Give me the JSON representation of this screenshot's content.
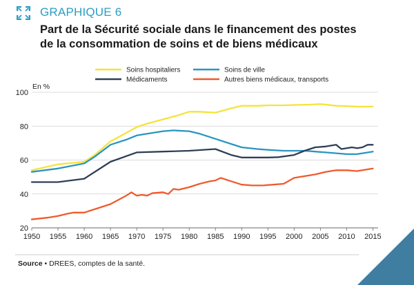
{
  "header": {
    "label": "GRAPHIQUE 6",
    "icon": "expand-icon",
    "title_line1": "Part de la Sécurité sociale dans le financement des postes",
    "title_line2": "de la consommation de soins et de biens médicaux"
  },
  "source": {
    "label": "Source",
    "bullet": "•",
    "text": "DREES, comptes de la santé."
  },
  "colors": {
    "accent": "#2b9ec0",
    "soins_hospitaliers": "#f5e33a",
    "soins_de_ville": "#2a95bf",
    "medicaments": "#2e3e55",
    "autres": "#ef5a2b",
    "grid": "#cfcfcf",
    "corner": "#3f7ea0"
  },
  "chart_data": {
    "type": "line",
    "title": "",
    "xlabel": "",
    "ylabel": "En %",
    "xlim": [
      1950,
      2016
    ],
    "ylim": [
      20,
      100
    ],
    "xticks": [
      1950,
      1955,
      1960,
      1965,
      1970,
      1975,
      1980,
      1985,
      1990,
      1995,
      2000,
      2005,
      2010,
      2015
    ],
    "yticks": [
      20,
      40,
      60,
      80,
      100
    ],
    "grid": true,
    "legend_position": "top",
    "series": [
      {
        "name": "Soins hospitaliers",
        "color": "#f5e33a",
        "x": [
          1950,
          1955,
          1960,
          1962,
          1965,
          1968,
          1970,
          1972,
          1975,
          1978,
          1980,
          1982,
          1985,
          1988,
          1990,
          1993,
          1995,
          1998,
          2000,
          2003,
          2005,
          2008,
          2010,
          2012,
          2015
        ],
        "y": [
          54,
          57.5,
          59,
          63,
          71,
          76,
          79.5,
          81.5,
          84,
          86.5,
          88.5,
          88.5,
          88,
          90.5,
          92,
          92,
          92.3,
          92.3,
          92.5,
          92.7,
          93,
          92,
          91.8,
          91.5,
          91.5
        ]
      },
      {
        "name": "Soins de ville",
        "color": "#2a95bf",
        "x": [
          1950,
          1955,
          1960,
          1962,
          1965,
          1968,
          1970,
          1972,
          1975,
          1977,
          1980,
          1982,
          1985,
          1988,
          1990,
          1993,
          1995,
          1998,
          2000,
          2002,
          2004,
          2006,
          2008,
          2010,
          2012,
          2015
        ],
        "y": [
          53,
          55,
          58,
          62,
          69,
          72,
          74.5,
          75.5,
          77,
          77.5,
          77,
          75.5,
          72.5,
          69.5,
          67.5,
          66.5,
          66,
          65.5,
          65.5,
          65.5,
          65,
          64.5,
          64,
          63.5,
          63.5,
          65
        ]
      },
      {
        "name": "Médicaments",
        "color": "#2e3e55",
        "x": [
          1950,
          1955,
          1960,
          1965,
          1970,
          1975,
          1980,
          1985,
          1988,
          1990,
          1993,
          1995,
          1997,
          2000,
          2002,
          2004,
          2006,
          2008,
          2009,
          2010,
          2011,
          2012,
          2013,
          2014,
          2015
        ],
        "y": [
          47,
          47,
          49,
          59,
          64.5,
          65,
          65.5,
          66.5,
          63,
          61.5,
          61.5,
          61.5,
          61.7,
          63,
          65.5,
          67.5,
          68,
          69,
          66.5,
          67,
          67.5,
          67,
          67.5,
          69,
          69
        ]
      },
      {
        "name": "Autres biens médicaux, transports",
        "color": "#ef5a2b",
        "x": [
          1950,
          1953,
          1955,
          1957,
          1958,
          1960,
          1962,
          1965,
          1968,
          1969,
          1970,
          1971,
          1972,
          1973,
          1975,
          1976,
          1977,
          1978,
          1980,
          1982,
          1984,
          1985,
          1986,
          1988,
          1990,
          1992,
          1994,
          1996,
          1998,
          2000,
          2002,
          2004,
          2006,
          2008,
          2010,
          2012,
          2014,
          2015
        ],
        "y": [
          25,
          26,
          27,
          28.5,
          29,
          29,
          31,
          34,
          39,
          41,
          39,
          39.5,
          39,
          40.5,
          41,
          40,
          43,
          42.5,
          44,
          46,
          47.5,
          48,
          49.5,
          47.5,
          45.5,
          45,
          45,
          45.5,
          46,
          49.5,
          50.5,
          51.5,
          53,
          54,
          54,
          53.5,
          54.5,
          55
        ]
      }
    ]
  }
}
